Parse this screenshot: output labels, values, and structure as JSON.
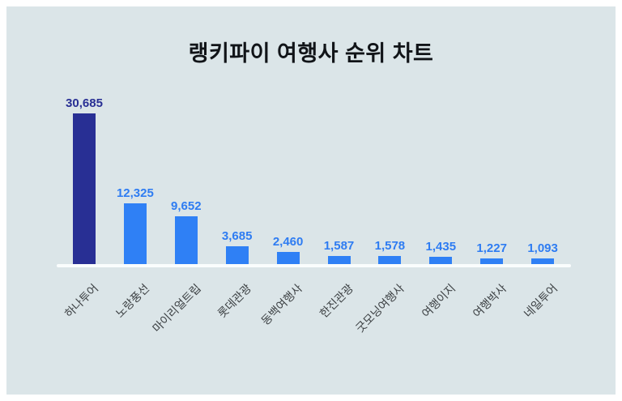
{
  "title": "랭키파이 여행사 순위 차트",
  "chart_data": {
    "type": "bar",
    "title": "랭키파이 여행사 순위 차트",
    "xlabel": "",
    "ylabel": "",
    "ylim": [
      0,
      30685
    ],
    "grid": false,
    "legend_position": "none",
    "categories": [
      "하나투어",
      "노랑풍선",
      "마이리얼트립",
      "롯데관광",
      "동백여행사",
      "한진관광",
      "굿모닝여행사",
      "여행이지",
      "여행박사",
      "네일투어"
    ],
    "values": [
      30685,
      12325,
      9652,
      3685,
      2460,
      1587,
      1578,
      1435,
      1227,
      1093
    ],
    "value_labels": [
      "30,685",
      "12,325",
      "9,652",
      "3,685",
      "2,460",
      "1,587",
      "1,578",
      "1,435",
      "1,227",
      "1,093"
    ],
    "highlight_index": 0,
    "colors": {
      "background": "#dbe5e8",
      "bar_highlight": "#282f94",
      "bar_normal": "#2f80f5",
      "value_label_highlight": "#282f94",
      "value_label_normal": "#2e7cf2",
      "category_label": "#3c4043",
      "axis_line": "#fafdfd",
      "title_text": "#111418"
    }
  }
}
